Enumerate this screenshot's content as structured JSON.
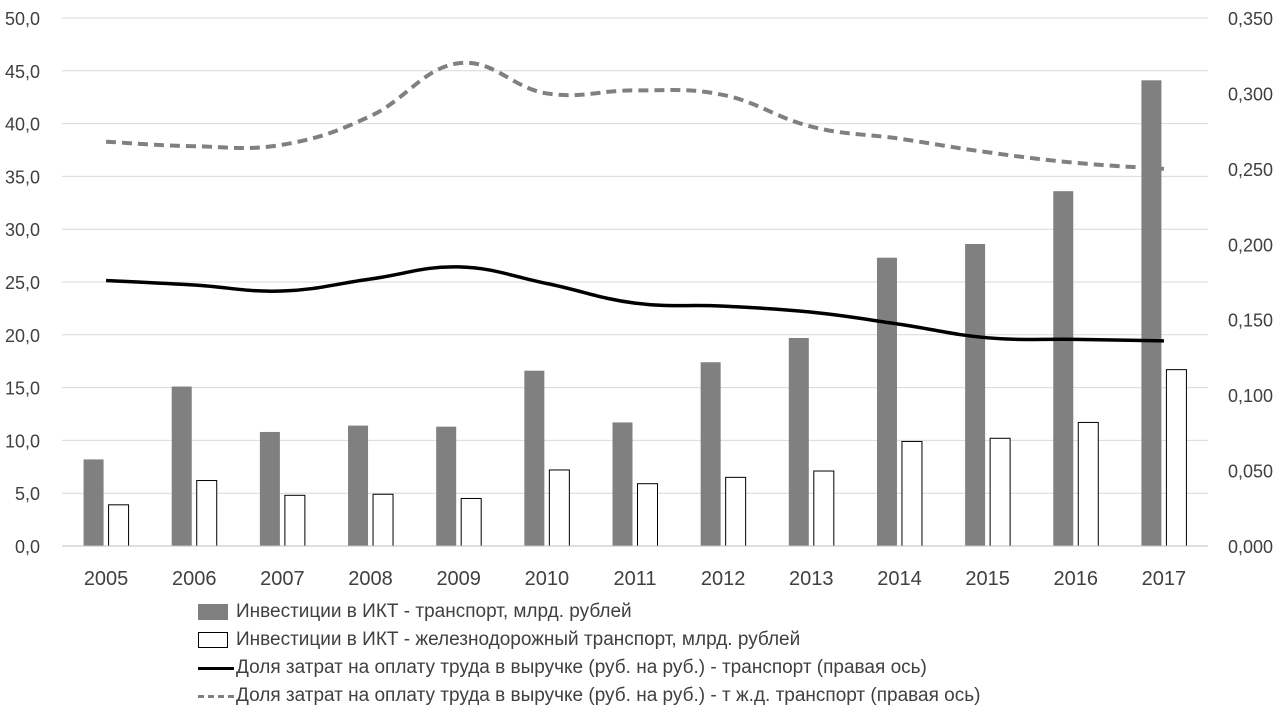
{
  "chart_data": {
    "type": "bar",
    "categories": [
      "2005",
      "2006",
      "2007",
      "2008",
      "2009",
      "2010",
      "2011",
      "2012",
      "2013",
      "2014",
      "2015",
      "2016",
      "2017"
    ],
    "y_left": {
      "min": 0,
      "max": 50,
      "ticks": [
        "0,0",
        "5,0",
        "10,0",
        "15,0",
        "20,0",
        "25,0",
        "30,0",
        "35,0",
        "40,0",
        "45,0",
        "50,0"
      ]
    },
    "y_right": {
      "min": 0,
      "max": 0.35,
      "ticks": [
        "0,000",
        "0,050",
        "0,100",
        "0,150",
        "0,200",
        "0,250",
        "0,300",
        "0,350"
      ]
    },
    "grid": true,
    "legend_position": "bottom",
    "series": [
      {
        "name": "Инвестиции в ИКТ - транспорт, млрд. рублей",
        "kind": "bar",
        "axis": "left",
        "color": "#808080",
        "values": [
          8.2,
          15.1,
          10.8,
          11.4,
          11.3,
          16.6,
          11.7,
          17.4,
          19.7,
          27.3,
          28.6,
          33.6,
          44.1
        ]
      },
      {
        "name": "Инвестиции в ИКТ - железнодорожный транспорт, млрд. рублей",
        "kind": "bar",
        "axis": "left",
        "color": "#ffffff",
        "values": [
          3.9,
          6.2,
          4.8,
          4.9,
          4.5,
          7.2,
          5.9,
          6.5,
          7.1,
          9.9,
          10.2,
          11.7,
          16.7
        ]
      },
      {
        "name": "Доля затрат на оплату труда в выручке (руб. на руб.) - транспорт (правая ось)",
        "kind": "line",
        "axis": "right",
        "color": "#000000",
        "dashed": false,
        "values": [
          0.176,
          0.173,
          0.169,
          0.177,
          0.185,
          0.174,
          0.161,
          0.159,
          0.155,
          0.147,
          0.138,
          0.137,
          0.136
        ]
      },
      {
        "name": "Доля затрат на оплату труда в выручке (руб. на руб.) - т ж.д. транспорт (правая ось)",
        "kind": "line",
        "axis": "right",
        "color": "#808080",
        "dashed": true,
        "values": [
          0.268,
          0.265,
          0.266,
          0.285,
          0.32,
          0.3,
          0.302,
          0.299,
          0.278,
          0.27,
          0.261,
          0.254,
          0.25
        ]
      }
    ]
  }
}
